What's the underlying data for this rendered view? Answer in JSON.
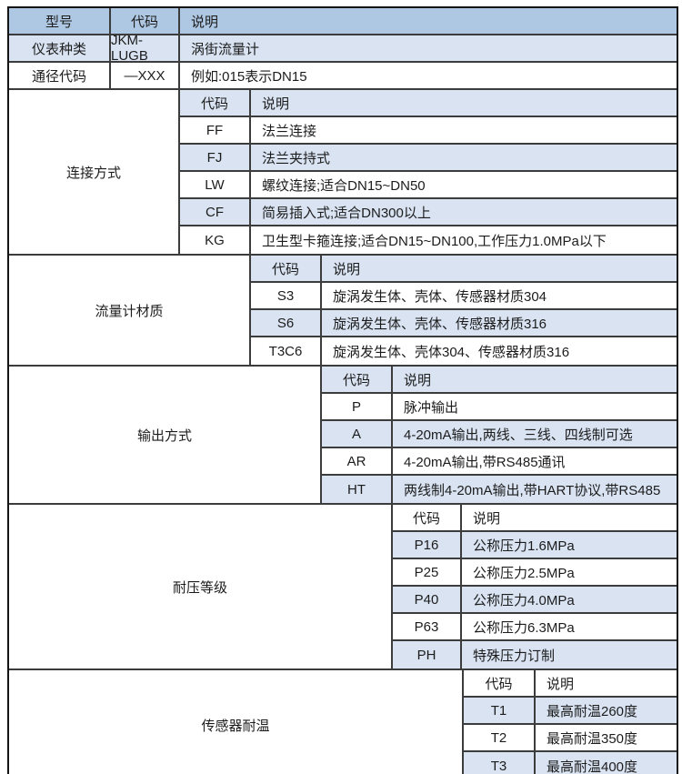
{
  "colors": {
    "header_bg": "#aec7e3",
    "alt_row_bg": "#d9e3f2",
    "row_bg": "#ffffff",
    "border_inner": "#3c3c3c",
    "border_outer": "#141414",
    "text": "#1c1c1c"
  },
  "header": {
    "model": "型号",
    "code": "代码",
    "desc": "说明"
  },
  "top_rows": [
    {
      "model": "仪表种类",
      "code": "JKM-LUGB",
      "desc": "涡街流量计"
    },
    {
      "model": "通径代码",
      "code": "—XXX",
      "desc": "例如:015表示DN15"
    }
  ],
  "sections": [
    {
      "label": "连接方式",
      "header": {
        "code": "代码",
        "desc": "说明"
      },
      "rows": [
        {
          "code": "FF",
          "desc": "法兰连接"
        },
        {
          "code": "FJ",
          "desc": "法兰夹持式"
        },
        {
          "code": "LW",
          "desc": "螺纹连接;适合DN15~DN50"
        },
        {
          "code": "CF",
          "desc": "简易插入式;适合DN300以上"
        },
        {
          "code": "KG",
          "desc": "卫生型卡箍连接;适合DN15~DN100,工作压力1.0MPa以下"
        }
      ]
    },
    {
      "label": "流量计材质",
      "header": {
        "code": "代码",
        "desc": "说明"
      },
      "rows": [
        {
          "code": "S3",
          "desc": "旋涡发生体、壳体、传感器材质304"
        },
        {
          "code": "S6",
          "desc": "旋涡发生体、壳体、传感器材质316"
        },
        {
          "code": "T3C6",
          "desc": "旋涡发生体、壳体304、传感器材质316"
        }
      ]
    },
    {
      "label": "输出方式",
      "header": {
        "code": "代码",
        "desc": "说明"
      },
      "rows": [
        {
          "code": "P",
          "desc": "脉冲输出"
        },
        {
          "code": "A",
          "desc": "4-20mA输出,两线、三线、四线制可选"
        },
        {
          "code": "AR",
          "desc": "4-20mA输出,带RS485通讯"
        },
        {
          "code": "HT",
          "desc": "两线制4-20mA输出,带HART协议,带RS485"
        }
      ]
    },
    {
      "label": "耐压等级",
      "header": {
        "code": "代码",
        "desc": "说明"
      },
      "rows": [
        {
          "code": "P16",
          "desc": "公称压力1.6MPa"
        },
        {
          "code": "P25",
          "desc": "公称压力2.5MPa"
        },
        {
          "code": "P40",
          "desc": "公称压力4.0MPa"
        },
        {
          "code": "P63",
          "desc": "公称压力6.3MPa"
        },
        {
          "code": "PH",
          "desc": "特殊压力订制"
        }
      ]
    },
    {
      "label": "传感器耐温",
      "header": {
        "code": "代码",
        "desc": "说明"
      },
      "rows": [
        {
          "code": "T1",
          "desc": "最高耐温260度"
        },
        {
          "code": "T2",
          "desc": "最高耐温350度"
        },
        {
          "code": "T3",
          "desc": "最高耐温400度"
        }
      ]
    }
  ]
}
